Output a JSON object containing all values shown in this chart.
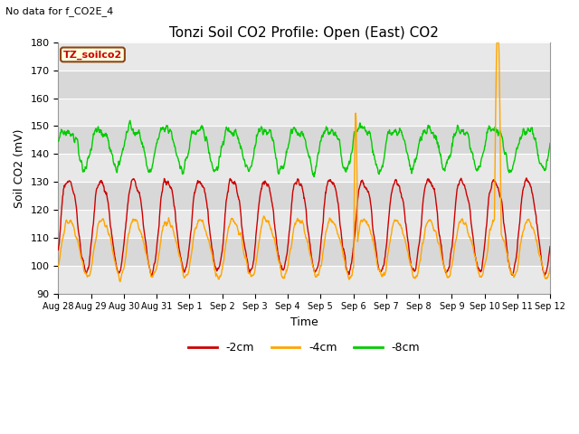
{
  "title": "Tonzi Soil CO2 Profile: Open (East) CO2",
  "subtitle": "No data for f_CO2E_4",
  "ylabel": "Soil CO2 (mV)",
  "xlabel": "Time",
  "ylim": [
    90,
    180
  ],
  "yticks": [
    90,
    100,
    110,
    120,
    130,
    140,
    150,
    160,
    170,
    180
  ],
  "xtick_labels": [
    "Aug 28",
    "Aug 29",
    "Aug 30",
    "Aug 31",
    "Sep 1",
    "Sep 2",
    "Sep 3",
    "Sep 4",
    "Sep 5",
    "Sep 6",
    "Sep 7",
    "Sep 8",
    "Sep 9",
    "Sep 10",
    "Sep 11",
    "Sep 12"
  ],
  "color_2cm": "#cc0000",
  "color_4cm": "#ffa500",
  "color_8cm": "#00cc00",
  "legend_labels": [
    "-2cm",
    "-4cm",
    "-8cm"
  ],
  "box_label": "TZ_soilco2",
  "fig_bg_color": "#ffffff",
  "plot_bg_color": "#f0f0f0",
  "band_colors": [
    "#e8e8e8",
    "#d8d8d8"
  ],
  "linewidth": 1.0,
  "figsize": [
    6.4,
    4.8
  ],
  "dpi": 100
}
